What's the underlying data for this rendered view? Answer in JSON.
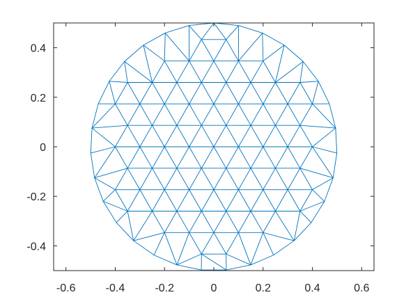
{
  "chart_data": {
    "type": "mesh",
    "title": "",
    "xlabel": "",
    "ylabel": "",
    "xlim": [
      -0.65,
      0.65
    ],
    "ylim": [
      -0.5,
      0.5
    ],
    "x_ticks": [
      "-0.6",
      "-0.4",
      "-0.2",
      "0",
      "0.2",
      "0.4",
      "0.6"
    ],
    "y_ticks": [
      "0.4",
      "0.2",
      "0",
      "-0.2",
      "-0.4"
    ],
    "x_tick_values": [
      -0.6,
      -0.4,
      -0.2,
      0,
      0.2,
      0.4,
      0.6
    ],
    "y_tick_values": [
      0.4,
      0.2,
      0,
      -0.2,
      -0.4
    ],
    "domain": {
      "shape": "circle",
      "center": [
        0,
        0
      ],
      "radius": 0.5
    },
    "mesh": {
      "element": "triangle",
      "approx_spacing": 0.1
    },
    "grid": false,
    "box": true
  },
  "colors": {
    "mesh_edge": "#0072bd",
    "axes": "#262626",
    "background": "#ffffff"
  }
}
